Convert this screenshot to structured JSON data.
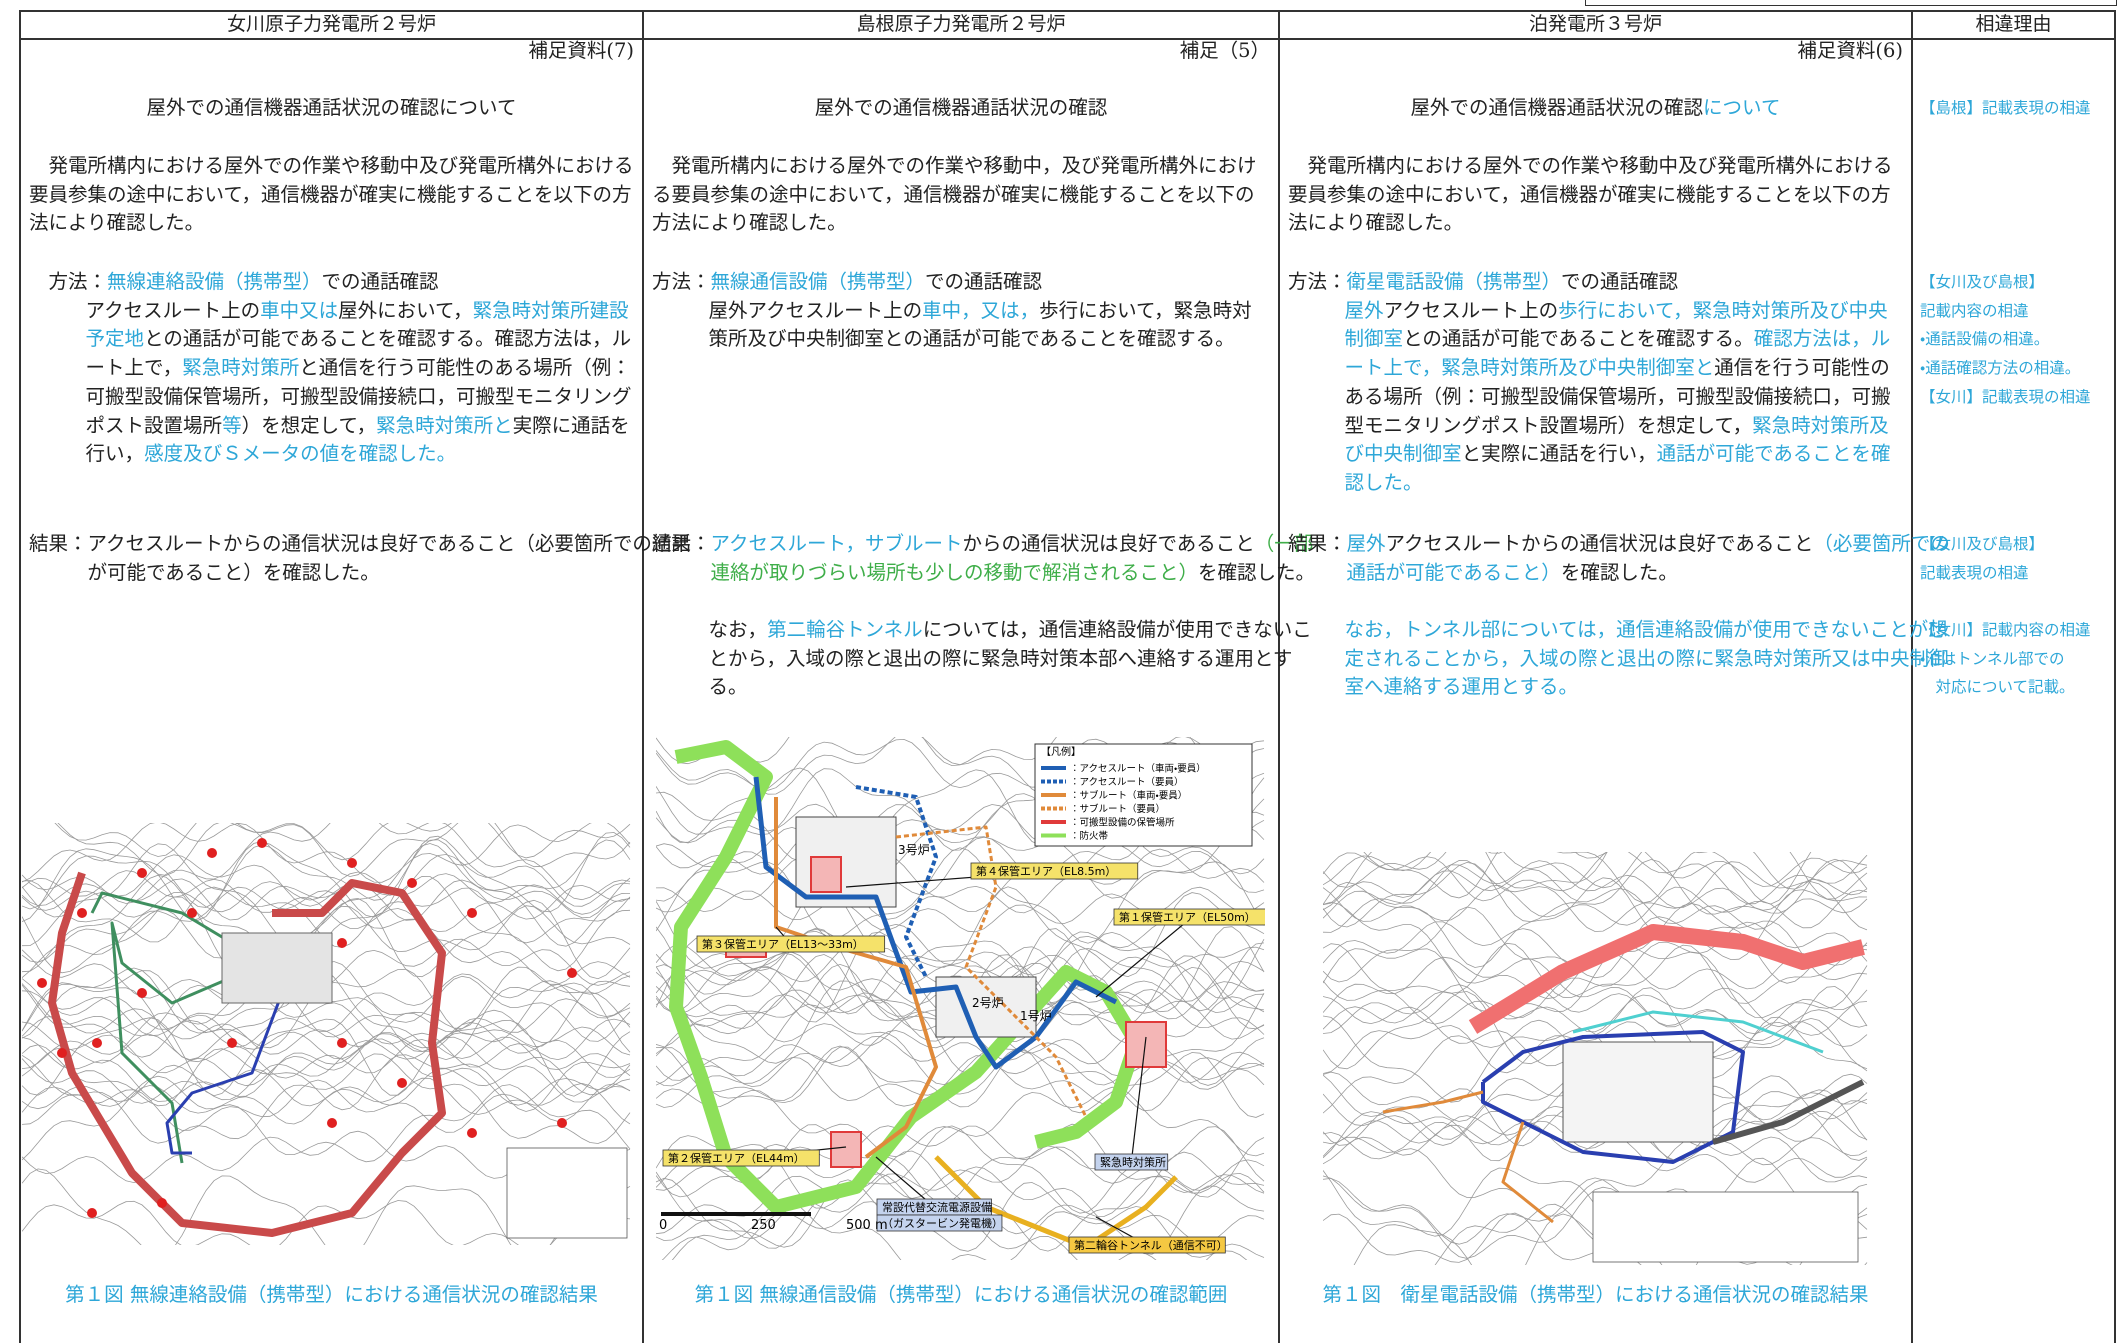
{
  "header_row": [
    "女川原子力発電所２号炉",
    "島根原子力発電所２号炉",
    "泊発電所３号炉",
    "相違理由"
  ],
  "columns": [
    {
      "ref": "補足資料(7)",
      "title": [
        "屋外での通信機器通話状況の確認について"
      ],
      "intro": [
        "発電所構内における屋外での作業や移動中及び発電所構外における要員参集の途中において，通信機器が確実に機能することを以下の方法により確認した。"
      ],
      "method": {
        "label": "方法：",
        "lead": [
          {
            "text": "無線連絡設備（携帯型）",
            "color": "#2ea7d8"
          },
          "での通話確認"
        ],
        "body": [
          "アクセスルート上の",
          {
            "text": "車中又は",
            "color": "#2ea7d8"
          },
          "屋外において，",
          {
            "text": "緊急時対策所建設予定地",
            "color": "#2ea7d8"
          },
          "との通話が可能であることを確認する。確認方法は，ルート上で，",
          {
            "text": "緊急時対策所",
            "color": "#2ea7d8"
          },
          "と通信を行う可能性のある場所（例：可搬型設備保管場所，可搬型設備接続口，可搬型モニタリングポスト設置場所",
          {
            "text": "等",
            "color": "#2ea7d8"
          },
          "）を想定して，",
          {
            "text": "緊急時対策所と",
            "color": "#2ea7d8"
          },
          "実際に通話を行い，",
          {
            "text": "感度及びＳメータの値を確認した。",
            "color": "#2ea7d8"
          }
        ]
      },
      "result": {
        "label": "結果：",
        "body": [
          "アクセスルートからの通信状況は良好であること（必要箇所での通話が可能であること）を確認した。"
        ]
      },
      "caption": {
        "text": "第１図 無線連絡設備（携帯型）における通信状況の確認結果",
        "color": "#2ea7d8"
      }
    },
    {
      "ref": "補足（5）",
      "title": [
        "屋外での通信機器通話状況の確認"
      ],
      "intro": [
        "発電所構内における屋外での作業や移動中，及び発電所構外における要員参集の途中において，通信機器が確実に機能することを以下の方法により確認した。"
      ],
      "method": {
        "label": "方法：",
        "lead": [
          {
            "text": "無線通信設備（携帯型）",
            "color": "#2ea7d8"
          },
          "での通話確認"
        ],
        "body": [
          "屋外アクセスルート上の",
          {
            "text": "車中，又は，",
            "color": "#2ea7d8"
          },
          "歩行において，緊急時対策所及び中央制御室との通話が可能であることを確認する。"
        ]
      },
      "result": {
        "label": "結果：",
        "body": [
          {
            "text": "アクセスルート，サブルート",
            "color": "#2ea7d8"
          },
          "からの通信状況は良好であること",
          {
            "text": "（一部連絡が取りづらい場所も少しの移動で解消されること）",
            "color": "#3fae49"
          },
          "を確認した。"
        ],
        "note": [
          "なお，",
          {
            "text": "第二輪谷トンネル",
            "color": "#2ea7d8"
          },
          "については，通信連絡設備が使用できないことから，入域の際と退出の際に緊急時対策本部へ連絡する運用とする。"
        ]
      },
      "figure": {
        "labels": [
          {
            "text": "3号炉",
            "color": "#ffffff"
          },
          {
            "text": "第４保管エリア（EL8.5m）",
            "color": "#f5e26a"
          },
          {
            "text": "第１保管エリア（EL50m）",
            "color": "#f5e26a"
          },
          {
            "text": "第３保管エリア（EL13～33m）",
            "color": "#f5e26a"
          },
          {
            "text": "2号炉",
            "color": "#ffffff"
          },
          {
            "text": "1号炉",
            "color": "#ffffff"
          },
          {
            "text": "第２保管エリア（EL44m）",
            "color": "#f5e26a"
          },
          {
            "text": "緊急時対策所",
            "color": "#c4d3ee"
          },
          {
            "text": "常設代替交流電源設備",
            "color": "#c4d3ee"
          },
          {
            "text": "（ガスタービン発電機）",
            "color": "#c4d3ee"
          },
          {
            "text": "第二輪谷トンネル（通信不可）",
            "color": "#f5c842"
          }
        ],
        "legend_title": "【凡例】",
        "legend": [
          {
            "text": "：アクセスルート（車両・要員）",
            "color": "#1f5fb4"
          },
          {
            "text": "：アクセスルート（要員）",
            "color": "#1f5fb4"
          },
          {
            "text": "：サブルート（車両・要員）",
            "color": "#e08a3a"
          },
          {
            "text": "：サブルート（要員）",
            "color": "#e08a3a"
          },
          {
            "text": "：可搬型設備の保管場所",
            "color": "#e03a3a"
          },
          {
            "text": "：防火帯",
            "color": "#8ee05a"
          }
        ],
        "scale": [
          "0",
          "250",
          "500 m"
        ]
      },
      "caption": {
        "text": "第１図 無線通信設備（携帯型）における通信状況の確認範囲",
        "color": "#2ea7d8"
      }
    },
    {
      "ref": "補足資料(6)",
      "title": [
        "屋外での通信機器通話状況の確認",
        {
          "text": "について",
          "color": "#2ea7d8"
        }
      ],
      "intro": [
        "発電所構内における屋外での作業や移動中及び発電所構外における要員参集の途中において，通信機器が確実に機能することを以下の方法により確認した。"
      ],
      "method": {
        "label": "方法：",
        "lead": [
          {
            "text": "衛星電話設備（携帯型）",
            "color": "#2ea7d8"
          },
          "での通話確認"
        ],
        "body": [
          {
            "text": "屋外",
            "color": "#2ea7d8"
          },
          "アクセスルート上の",
          {
            "text": "歩行において，緊急時対策所及び中央制御室",
            "color": "#2ea7d8"
          },
          "との通話が可能であることを確認する。",
          {
            "text": "確認方法は，ルート上で，緊急時対策所及び中央制御室と",
            "color": "#2ea7d8"
          },
          "通信を行う可能性のある場所（例：可搬型設備保管場所，可搬型設備接続口，可搬型モニタリングポスト設置場所）を想定して，",
          {
            "text": "緊急時対策所及び中央制御室",
            "color": "#2ea7d8"
          },
          "と実際に通話を行い，",
          {
            "text": "通話が可能であることを確認した。",
            "color": "#2ea7d8"
          }
        ]
      },
      "result": {
        "label": "結果：",
        "body": [
          {
            "text": "屋外",
            "color": "#2ea7d8"
          },
          "アクセスルートからの通信状況は良好であること",
          {
            "text": "（必要箇所での通話が可能であること）",
            "color": "#2ea7d8"
          },
          "を確認した。"
        ],
        "note": [
          {
            "text": "なお，トンネル部については，通信連絡設備が使用できないことが想定されることから，入域の際と退出の際に緊急時対策所又は中央制御室へ連絡する運用とする。",
            "color": "#2ea7d8"
          }
        ]
      },
      "caption": {
        "text": "第１図　衛星電話設備（携帯型）における通信状況の確認結果",
        "color": "#2ea7d8"
      }
    }
  ],
  "remarks": [
    {
      "color": "#2ea7d8",
      "lines": [
        "【島根】記載表現の相違"
      ]
    },
    {
      "color": "#2ea7d8",
      "lines": [
        "【女川及び島根】",
        "記載内容の相違",
        "・通話設備の相違。",
        "・通話確認方法の相違。",
        "【女川】記載表現の相違"
      ]
    },
    {
      "color": "#2ea7d8",
      "lines": [
        "【女川及び島根】",
        "記載表現の相違"
      ]
    },
    {
      "color": "#2ea7d8",
      "lines": [
        "【女川】記載内容の相違",
        "・泊はトンネル部での",
        "　対応について記載。"
      ]
    }
  ]
}
